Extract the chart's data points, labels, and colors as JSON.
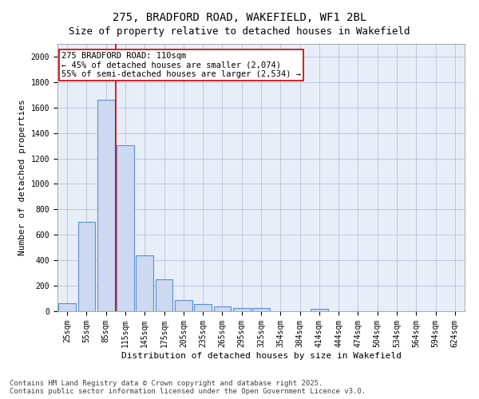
{
  "title": "275, BRADFORD ROAD, WAKEFIELD, WF1 2BL",
  "subtitle": "Size of property relative to detached houses in Wakefield",
  "xlabel": "Distribution of detached houses by size in Wakefield",
  "ylabel": "Number of detached properties",
  "categories": [
    "25sqm",
    "55sqm",
    "85sqm",
    "115sqm",
    "145sqm",
    "175sqm",
    "205sqm",
    "235sqm",
    "265sqm",
    "295sqm",
    "325sqm",
    "354sqm",
    "384sqm",
    "414sqm",
    "444sqm",
    "474sqm",
    "504sqm",
    "534sqm",
    "564sqm",
    "594sqm",
    "624sqm"
  ],
  "values": [
    65,
    700,
    1660,
    1305,
    440,
    250,
    90,
    55,
    40,
    25,
    25,
    0,
    0,
    20,
    0,
    0,
    0,
    0,
    0,
    0,
    0
  ],
  "bar_color": "#ccd9f0",
  "bar_edge_color": "#5b8fd4",
  "bar_edge_width": 0.8,
  "property_line_x": 2.5,
  "property_line_color": "#cc0000",
  "annotation_text": "275 BRADFORD ROAD: 110sqm\n← 45% of detached houses are smaller (2,074)\n55% of semi-detached houses are larger (2,534) →",
  "annotation_box_color": "#ffffff",
  "annotation_box_edge_color": "#cc0000",
  "ylim": [
    0,
    2100
  ],
  "yticks": [
    0,
    200,
    400,
    600,
    800,
    1000,
    1200,
    1400,
    1600,
    1800,
    2000
  ],
  "background_color": "#e8eef8",
  "grid_color": "#b0b8d0",
  "footer_text": "Contains HM Land Registry data © Crown copyright and database right 2025.\nContains public sector information licensed under the Open Government Licence v3.0.",
  "title_fontsize": 10,
  "subtitle_fontsize": 9,
  "xlabel_fontsize": 8,
  "ylabel_fontsize": 8,
  "tick_fontsize": 7,
  "annotation_fontsize": 7.5,
  "footer_fontsize": 6.5
}
